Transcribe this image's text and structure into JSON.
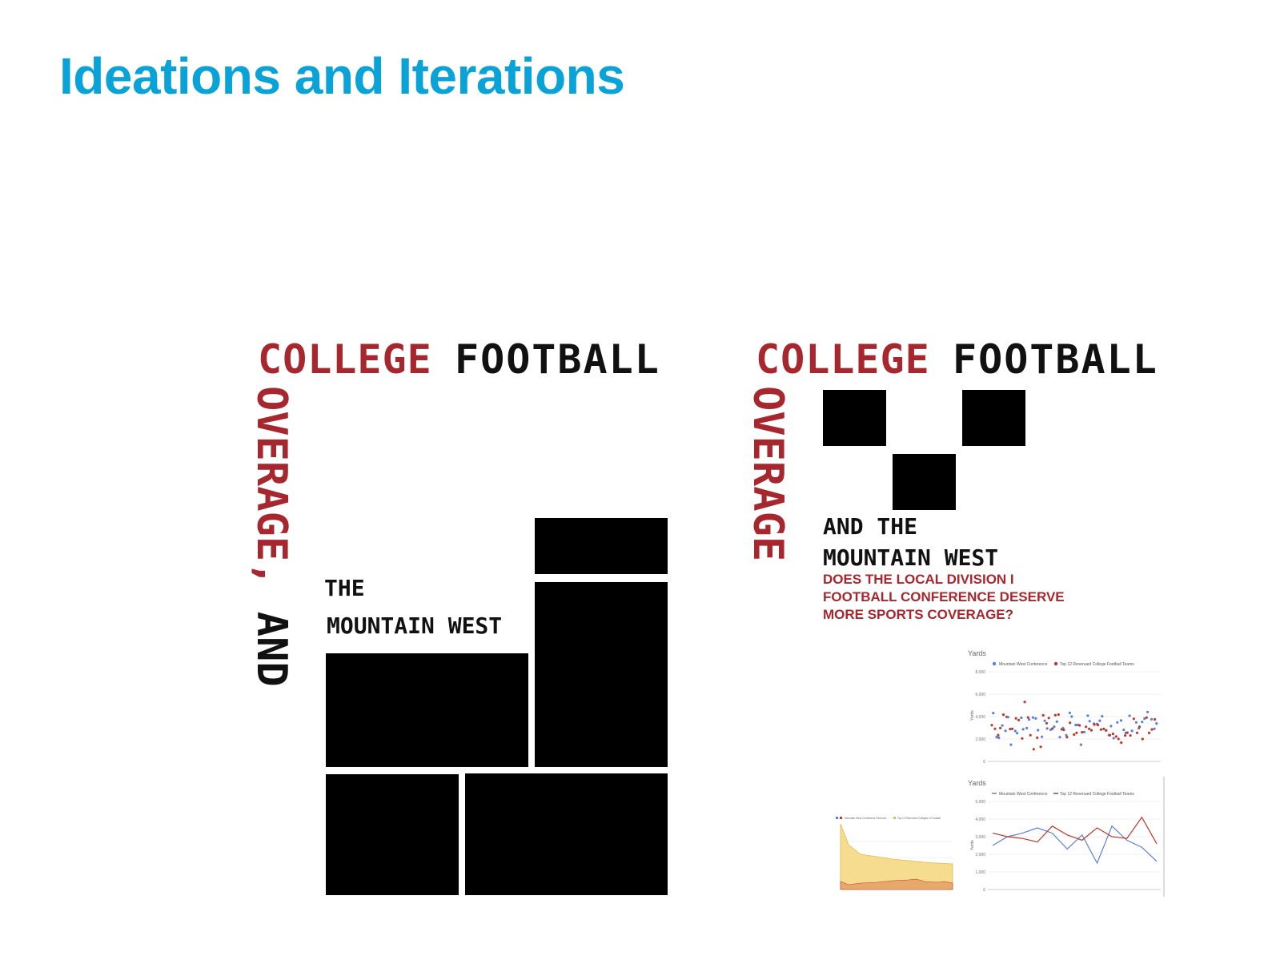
{
  "slide": {
    "title": "Ideations and Iterations"
  },
  "poster1": {
    "title_red": "COLLEGE",
    "title_black": "FOOTBALL",
    "vertical_red": "OVERAGE,",
    "vertical_black": "AND",
    "line1": "THE",
    "line2": "MOUNTAIN WEST"
  },
  "poster2": {
    "title_red": "COLLEGE",
    "title_black": "FOOTBALL",
    "vertical_red": "OVERAGE",
    "line1": "AND THE",
    "line2": "MOUNTAIN WEST",
    "question": [
      "DOES THE LOCAL DIVISION I",
      "FOOTBALL CONFERENCE DESERVE",
      "MORE SPORTS COVERAGE?"
    ],
    "scatter": {
      "ylabel_top": "Yards",
      "axis_label": "Yards",
      "legend": [
        "Mountain West Conference",
        "Top 12 Revenued College Football Teams"
      ],
      "yticks": [
        "8,000",
        "6,000",
        "4,000",
        "2,000",
        "0"
      ]
    },
    "line": {
      "ylabel_top": "Yards",
      "axis_label": "Yards",
      "legend": [
        "Mountain West Conference",
        "Top 12 Revenued College Football Teams"
      ],
      "yticks": [
        "5,000",
        "4,000",
        "3,000",
        "2,000",
        "1,000",
        "0"
      ],
      "series_blue": [
        2500,
        3000,
        3200,
        3500,
        3200,
        2300,
        3100,
        1500,
        3600,
        2800,
        2400,
        1600
      ],
      "series_red": [
        3200,
        3000,
        2900,
        2700,
        3600,
        3100,
        2800,
        3500,
        3000,
        2900,
        4100,
        2600
      ]
    },
    "area": {
      "legend": [
        "Mountain West Conference Revenue",
        "Top 12 Revenued Colleges in Football"
      ]
    }
  },
  "colors": {
    "title": "#0aa3d8",
    "red": "#a6282e",
    "black": "#000000",
    "blue": "#5a7fdc",
    "chart_red": "#c0392b"
  }
}
